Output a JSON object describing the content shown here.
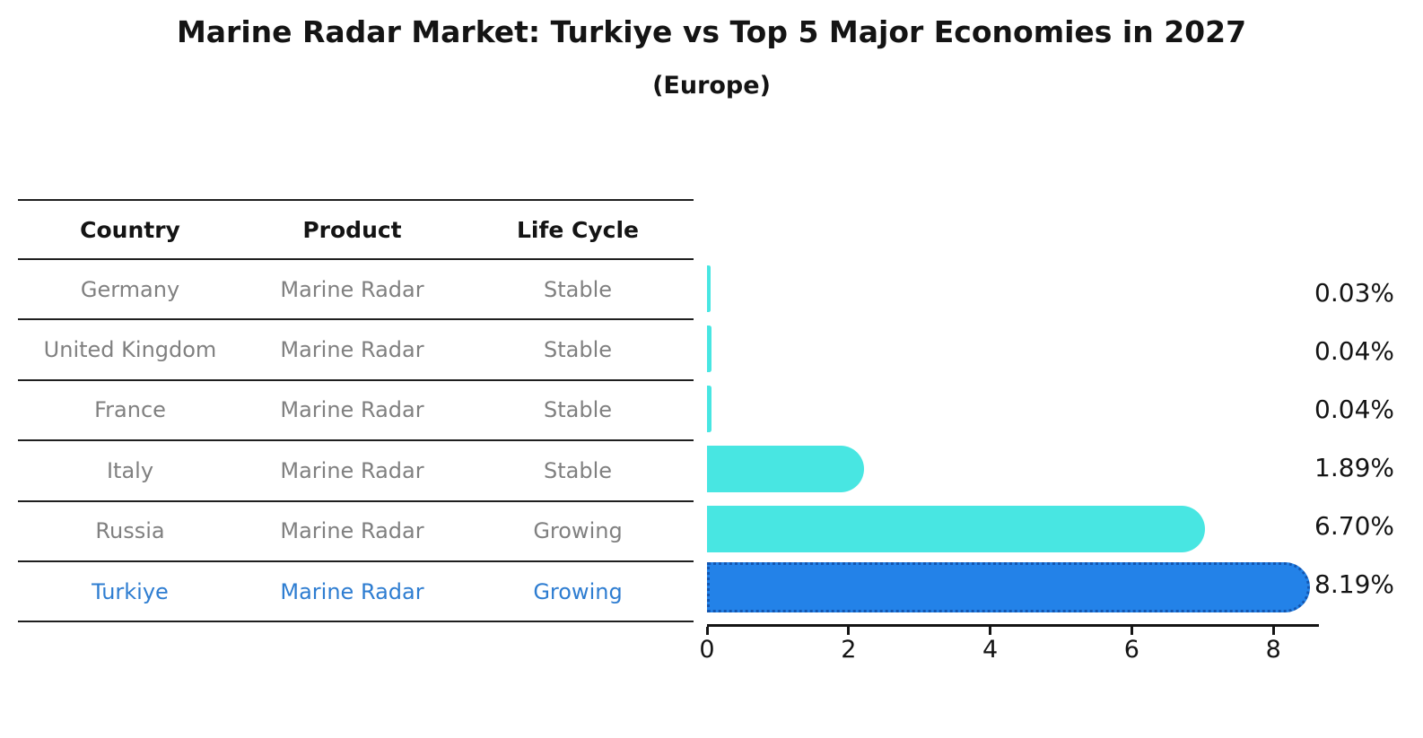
{
  "title": "Marine Radar Market: Turkiye vs Top 5 Major Economies in 2027",
  "subtitle": "(Europe)",
  "table": {
    "headers": [
      "Country",
      "Product",
      "Life Cycle"
    ],
    "rows": [
      {
        "country": "Germany",
        "product": "Marine Radar",
        "life_cycle": "Stable"
      },
      {
        "country": "United Kingdom",
        "product": "Marine Radar",
        "life_cycle": "Stable"
      },
      {
        "country": "France",
        "product": "Marine Radar",
        "life_cycle": "Stable"
      },
      {
        "country": "Italy",
        "product": "Marine Radar",
        "life_cycle": "Stable"
      },
      {
        "country": "Russia",
        "product": "Marine Radar",
        "life_cycle": "Growing"
      },
      {
        "country": "Turkiye",
        "product": "Marine Radar",
        "life_cycle": "Growing"
      }
    ]
  },
  "chart_data": {
    "type": "bar",
    "orientation": "horizontal",
    "title": "Marine Radar Market: Turkiye vs Top 5 Major Economies in 2027",
    "subtitle": "(Europe)",
    "categories": [
      "Germany",
      "United Kingdom",
      "France",
      "Italy",
      "Russia",
      "Turkiye"
    ],
    "values": [
      0.03,
      0.04,
      0.04,
      1.89,
      6.7,
      8.19
    ],
    "labels": [
      "0.03%",
      "0.04%",
      "0.04%",
      "1.89%",
      "6.70%",
      "8.19%"
    ],
    "life_cycle": [
      "Stable",
      "Stable",
      "Stable",
      "Stable",
      "Growing",
      "Growing"
    ],
    "xlabel": "",
    "ylabel": "",
    "xlim": [
      0,
      8.6
    ],
    "xticks": [
      0,
      2,
      4,
      6,
      8
    ],
    "grid": false,
    "legend": false,
    "bar_color": "#48E6E2",
    "highlight_index": 5,
    "highlight_bar_color": "#2382E8",
    "highlight_border_color": "#1356B0",
    "highlight_text_color": "#2E7DD1",
    "text_color": "#141414",
    "muted_text_color": "#808080"
  }
}
